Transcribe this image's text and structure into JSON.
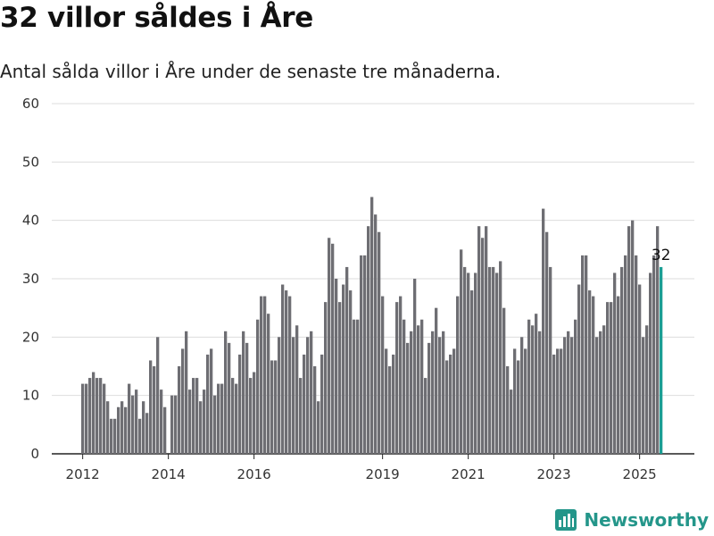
{
  "header": {
    "title": "32 villor såldes i Åre",
    "subtitle": "Antal sålda villor i Åre under de senaste tre månaderna."
  },
  "brand": {
    "name": "Newsworthy",
    "icon": "bar-chart-logo-icon",
    "color": "#24968a"
  },
  "chart_data": {
    "type": "bar",
    "title": "32 villor såldes i Åre",
    "subtitle": "Antal sålda villor i Åre under de senaste tre månaderna.",
    "xlabel": "",
    "ylabel": "",
    "ylim": [
      0,
      60
    ],
    "yticks": [
      0,
      10,
      20,
      30,
      40,
      50,
      60
    ],
    "grid": true,
    "x_ticks": [
      {
        "label": "2012",
        "month": "2012-01"
      },
      {
        "label": "2014",
        "month": "2014-01"
      },
      {
        "label": "2016",
        "month": "2016-01"
      },
      {
        "label": "2019",
        "month": "2019-01"
      },
      {
        "label": "2021",
        "month": "2021-01"
      },
      {
        "label": "2023",
        "month": "2023-01"
      },
      {
        "label": "2025",
        "month": "2025-01"
      }
    ],
    "colors": {
      "bar": "#6e6e73",
      "highlight": "#1b9e94",
      "grid": "#dddddd"
    },
    "highlight_label": "32",
    "categories": [
      "2012-01",
      "2012-02",
      "2012-03",
      "2012-04",
      "2012-05",
      "2012-06",
      "2012-07",
      "2012-08",
      "2012-09",
      "2012-10",
      "2012-11",
      "2012-12",
      "2013-01",
      "2013-02",
      "2013-03",
      "2013-04",
      "2013-05",
      "2013-06",
      "2013-07",
      "2013-08",
      "2013-09",
      "2013-10",
      "2013-11",
      "2013-12",
      "2014-01",
      "2014-02",
      "2014-03",
      "2014-04",
      "2014-05",
      "2014-06",
      "2014-07",
      "2014-08",
      "2014-09",
      "2014-10",
      "2014-11",
      "2014-12",
      "2015-01",
      "2015-02",
      "2015-03",
      "2015-04",
      "2015-05",
      "2015-06",
      "2015-07",
      "2015-08",
      "2015-09",
      "2015-10",
      "2015-11",
      "2015-12",
      "2016-01",
      "2016-02",
      "2016-03",
      "2016-04",
      "2016-05",
      "2016-06",
      "2016-07",
      "2016-08",
      "2016-09",
      "2016-10",
      "2016-11",
      "2016-12",
      "2017-01",
      "2017-02",
      "2017-03",
      "2017-04",
      "2017-05",
      "2017-06",
      "2017-07",
      "2017-08",
      "2017-09",
      "2017-10",
      "2017-11",
      "2017-12",
      "2018-01",
      "2018-02",
      "2018-03",
      "2018-04",
      "2018-05",
      "2018-06",
      "2018-07",
      "2018-08",
      "2018-09",
      "2018-10",
      "2018-11",
      "2018-12",
      "2019-01",
      "2019-02",
      "2019-03",
      "2019-04",
      "2019-05",
      "2019-06",
      "2019-07",
      "2019-08",
      "2019-09",
      "2019-10",
      "2019-11",
      "2019-12",
      "2020-01",
      "2020-02",
      "2020-03",
      "2020-04",
      "2020-05",
      "2020-06",
      "2020-07",
      "2020-08",
      "2020-09",
      "2020-10",
      "2020-11",
      "2020-12",
      "2021-01",
      "2021-02",
      "2021-03",
      "2021-04",
      "2021-05",
      "2021-06",
      "2021-07",
      "2021-08",
      "2021-09",
      "2021-10",
      "2021-11",
      "2021-12",
      "2022-01",
      "2022-02",
      "2022-03",
      "2022-04",
      "2022-05",
      "2022-06",
      "2022-07",
      "2022-08",
      "2022-09",
      "2022-10",
      "2022-11",
      "2022-12",
      "2023-01",
      "2023-02",
      "2023-03",
      "2023-04",
      "2023-05",
      "2023-06",
      "2023-07",
      "2023-08",
      "2023-09",
      "2023-10",
      "2023-11",
      "2023-12",
      "2024-01",
      "2024-02",
      "2024-03",
      "2024-04",
      "2024-05",
      "2024-06",
      "2024-07",
      "2024-08",
      "2024-09",
      "2024-10",
      "2024-11",
      "2024-12",
      "2025-01",
      "2025-02",
      "2025-03",
      "2025-04",
      "2025-05",
      "2025-06",
      "2025-07"
    ],
    "values": [
      12,
      12,
      13,
      14,
      13,
      13,
      12,
      9,
      6,
      6,
      8,
      9,
      8,
      12,
      10,
      11,
      6,
      9,
      7,
      16,
      15,
      20,
      11,
      8,
      0,
      10,
      10,
      15,
      18,
      21,
      11,
      13,
      13,
      9,
      11,
      17,
      18,
      10,
      12,
      12,
      21,
      19,
      13,
      12,
      17,
      21,
      19,
      13,
      14,
      23,
      27,
      27,
      24,
      16,
      16,
      20,
      29,
      28,
      27,
      20,
      22,
      13,
      17,
      20,
      21,
      15,
      9,
      17,
      26,
      37,
      36,
      30,
      26,
      29,
      32,
      28,
      23,
      23,
      34,
      34,
      39,
      44,
      41,
      38,
      27,
      18,
      15,
      17,
      26,
      27,
      23,
      19,
      21,
      30,
      22,
      23,
      13,
      19,
      21,
      25,
      20,
      21,
      16,
      17,
      18,
      27,
      35,
      32,
      31,
      28,
      31,
      39,
      37,
      39,
      32,
      32,
      31,
      33,
      25,
      15,
      11,
      18,
      16,
      20,
      18,
      23,
      22,
      24,
      21,
      42,
      38,
      32,
      17,
      18,
      18,
      20,
      21,
      20,
      23,
      29,
      34,
      34,
      28,
      27,
      20,
      21,
      22,
      26,
      26,
      31,
      27,
      32,
      34,
      39,
      40,
      34,
      29,
      20,
      22,
      31,
      34,
      39,
      32
    ]
  }
}
